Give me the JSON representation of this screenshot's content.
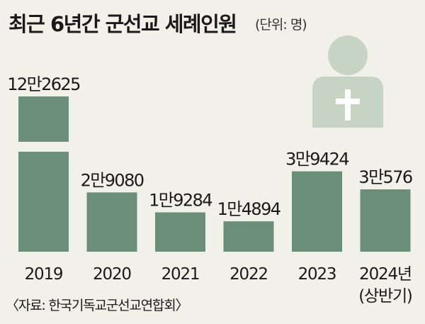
{
  "header": {
    "title": "최근 6년간 군선교 세례인원",
    "unit": "(단위: 명)"
  },
  "source": "〈자료: 한국기독교군선교연합회〉",
  "icon": "person-with-cross-icon",
  "colors": {
    "background": "#f1f1ea",
    "bar": "#6b8f76",
    "icon": "#c8d4c3",
    "icon_cross": "#ffffff"
  },
  "chart_data": {
    "type": "bar",
    "categories": [
      "2019",
      "2020",
      "2021",
      "2022",
      "2023",
      "2024년 (상반기)"
    ],
    "category_lines": [
      [
        "2019"
      ],
      [
        "2020"
      ],
      [
        "2021"
      ],
      [
        "2022"
      ],
      [
        "2023"
      ],
      [
        "2024년",
        "(상반기)"
      ]
    ],
    "values": [
      122625,
      29080,
      19284,
      14894,
      39424,
      30576
    ],
    "value_labels": [
      "12만2625",
      "2만9080",
      "1만9284",
      "1만4894",
      "3만9424",
      "3만576"
    ],
    "axis_break": true,
    "grid": false,
    "legend": "none"
  }
}
